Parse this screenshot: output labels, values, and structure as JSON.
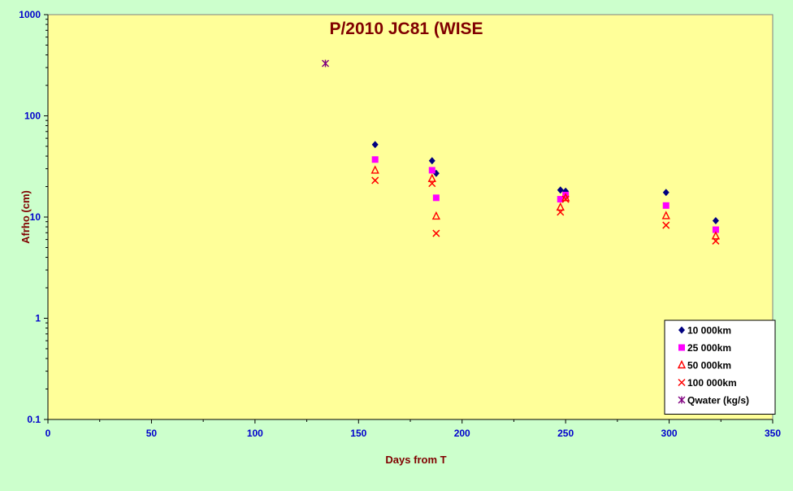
{
  "chart_data": {
    "type": "scatter",
    "title": "P/2010 JC81 (WISE",
    "xlabel": "Days from  T",
    "ylabel": "Afrho (cm)",
    "xlim": [
      0,
      350
    ],
    "ylim": [
      0.1,
      1000
    ],
    "yscale": "log",
    "x_ticks": [
      "0",
      "50",
      "100",
      "150",
      "200",
      "250",
      "300",
      "350"
    ],
    "y_ticks": [
      "0.1",
      "1",
      "10",
      "100",
      "1000"
    ],
    "legend_position": "bottom-right",
    "grid": false,
    "plot_background": "#ffff99",
    "figure_background": "#ccffcc",
    "series": [
      {
        "name": "10 000km",
        "marker": "diamond",
        "color": "#000080",
        "points": [
          [
            158,
            52
          ],
          [
            185.5,
            36
          ],
          [
            187.5,
            27
          ],
          [
            247.5,
            18.5
          ],
          [
            250,
            18
          ],
          [
            298.5,
            17.5
          ],
          [
            322.5,
            9.2
          ]
        ]
      },
      {
        "name": "25 000km",
        "marker": "square",
        "color": "#ff00ff",
        "points": [
          [
            158,
            37
          ],
          [
            185.5,
            29
          ],
          [
            187.5,
            15.5
          ],
          [
            247.5,
            15
          ],
          [
            250,
            16.5
          ],
          [
            298.5,
            13
          ],
          [
            322.5,
            7.5
          ]
        ]
      },
      {
        "name": "50 000km",
        "marker": "triangle",
        "color": "#ff0000",
        "points": [
          [
            158,
            29
          ],
          [
            185.5,
            24
          ],
          [
            187.5,
            10.2
          ],
          [
            247.5,
            12.5
          ],
          [
            250,
            15.5
          ],
          [
            298.5,
            10.3
          ],
          [
            322.5,
            6.5
          ]
        ]
      },
      {
        "name": "100 000km",
        "marker": "x",
        "color": "#ff0000",
        "points": [
          [
            158,
            23
          ],
          [
            185.5,
            21.5
          ],
          [
            187.5,
            6.9
          ],
          [
            247.5,
            11.2
          ],
          [
            250,
            15
          ],
          [
            298.5,
            8.3
          ],
          [
            322.5,
            5.8
          ]
        ]
      },
      {
        "name": "Qwater (kg/s)",
        "marker": "asterisk",
        "color": "#800080",
        "points": [
          [
            134,
            330
          ]
        ]
      }
    ]
  }
}
